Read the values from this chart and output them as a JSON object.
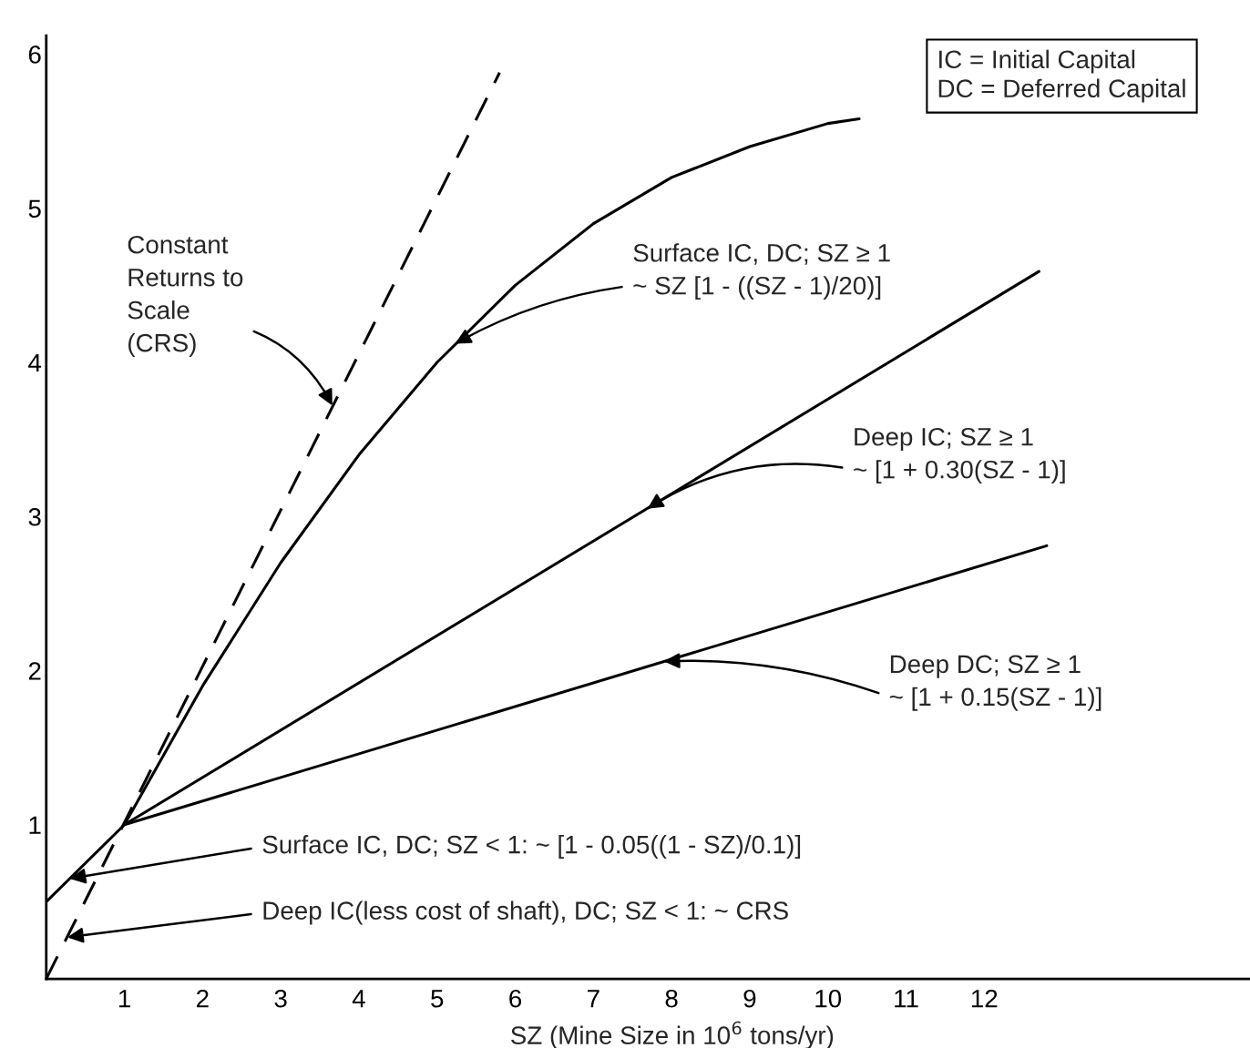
{
  "chart_data": {
    "type": "line",
    "xlabel": "SZ (Mine Size in 10$^{6}$ tons/yr)",
    "xlim": [
      0,
      15.4
    ],
    "xticks": [
      1,
      2,
      3,
      4,
      5,
      6,
      7,
      8,
      9,
      10,
      11,
      12
    ],
    "ylim": [
      0,
      6.12
    ],
    "yticks": [
      1,
      2,
      3,
      4,
      5,
      6
    ],
    "grid": false,
    "legend": false,
    "marker": "none",
    "series": [
      {
        "color": "#000000",
        "line_style": "dashed",
        "x": [
          0,
          5.8
        ],
        "values": [
          0,
          5.88
        ]
      },
      {
        "color": "#000000",
        "line_style": "solid",
        "x": [
          0,
          1,
          2,
          3,
          4,
          5,
          6,
          7,
          8,
          9,
          10,
          10.4
        ],
        "values": [
          0.5,
          1,
          1.9,
          2.7,
          3.4,
          4.0,
          4.5,
          4.9,
          5.2,
          5.4,
          5.55,
          5.58
        ]
      },
      {
        "color": "#000000",
        "line_style": "solid",
        "x": [
          1,
          12.7
        ],
        "values": [
          1,
          4.59
        ]
      },
      {
        "color": "#000000",
        "line_style": "solid",
        "x": [
          1,
          12.8
        ],
        "values": [
          1,
          2.81
        ]
      }
    ],
    "annotations": [
      {
        "text": "Constant\nReturns to\nScale\n(CRS)",
        "x": 3.66,
        "y": 3.72
      },
      {
        "text": "Surface IC, DC; SZ ≥ 1\n~ SZ [1 - ((SZ - 1)/20)]",
        "x": 5.23,
        "y": 4.12
      },
      {
        "text": "Deep IC; SZ ≥ 1\n~ [1 + 0.30(SZ - 1)]",
        "x": 7.69,
        "y": 3.05
      },
      {
        "text": "Deep DC; SZ ≥ 1\n~ [1 + 0.15(SZ - 1)]",
        "x": 7.9,
        "y": 2.06
      },
      {
        "text": "Surface IC, DC; SZ < 1: ~ [1 - 0.05((1 - SZ)/0.1)]",
        "x": 0.3,
        "y": 0.65
      },
      {
        "text": "Deep IC(less cost of shaft), DC; SZ < 1: ~ CRS",
        "x": 0.27,
        "y": 0.27
      },
      "IC = Initial Capital\nDC = Deferred Capital"
    ]
  }
}
